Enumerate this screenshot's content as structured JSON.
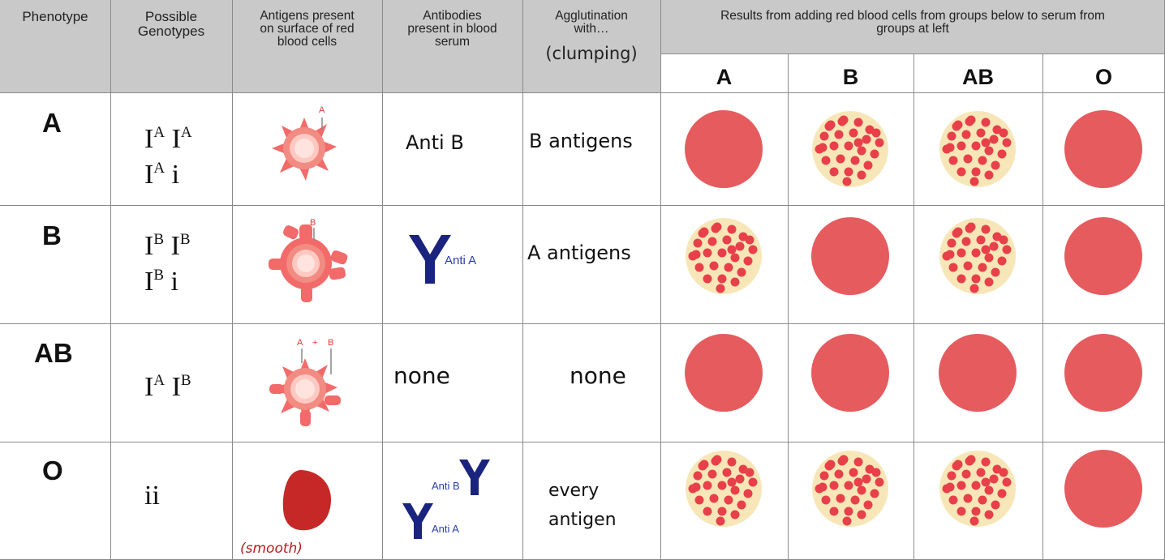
{
  "headers": {
    "phenotype": "Phenotype",
    "genotypes_1": "Possible",
    "genotypes_2": "Genotypes",
    "antigens_1": "Antigens present",
    "antigens_2": "on surface of red",
    "antigens_3": "blood cells",
    "antibodies_1": "Antibodies",
    "antibodies_2": "present in blood",
    "antibodies_3": "serum",
    "agglutination_1": "Agglutination",
    "agglutination_2": "with…",
    "clumping": "(clumping)",
    "results_1": "Results from adding red blood cells from groups below to serum from",
    "results_2": "groups at left",
    "result_groups": [
      "A",
      "B",
      "AB",
      "O"
    ]
  },
  "rows": [
    {
      "phenotype": "A",
      "genotype_lines": [
        [
          "I",
          "A",
          "I",
          "A"
        ],
        [
          "I",
          "A",
          "i",
          ""
        ]
      ],
      "antigen_label": "A",
      "antibody_text": "Anti B",
      "agglutination": "B antigens",
      "results": [
        "smooth",
        "clumped",
        "clumped",
        "smooth"
      ]
    },
    {
      "phenotype": "B",
      "genotype_lines": [
        [
          "I",
          "B",
          "I",
          "B"
        ],
        [
          "I",
          "B",
          "i",
          ""
        ]
      ],
      "antigen_label": "B",
      "antibody_label": "Anti A",
      "agglutination": "A antigens",
      "results": [
        "clumped",
        "smooth",
        "clumped",
        "smooth"
      ]
    },
    {
      "phenotype": "AB",
      "genotype_lines": [
        [
          "I",
          "A",
          "I",
          "B"
        ]
      ],
      "antigen_label_a": "A",
      "antigen_plus": "+",
      "antigen_label_b": "B",
      "antibody_text": "none",
      "agglutination": "none",
      "results": [
        "smooth",
        "smooth",
        "smooth",
        "smooth"
      ]
    },
    {
      "phenotype": "O",
      "genotype": "ii",
      "antigen_note": "(smooth)",
      "antibody_label_b": "Anti B",
      "antibody_label_a": "Anti A",
      "agglutination_1": "every",
      "agglutination_2": "antigen",
      "results": [
        "clumped",
        "clumped",
        "clumped",
        "smooth"
      ]
    }
  ],
  "colors": {
    "header_bg": "#c9c9c9",
    "grid_line": "#8a8a8a",
    "cell_red": "#e55b5e",
    "clump_bg": "#f7e7b8",
    "clump_dot": "#e8404a",
    "antibody_blue": "#1a237e",
    "antibody_label_blue": "#2a3fa8",
    "antigen_label_red": "#e53935",
    "plain_cell_red": "#c62828",
    "handwriting_red": "#b71c1c"
  }
}
